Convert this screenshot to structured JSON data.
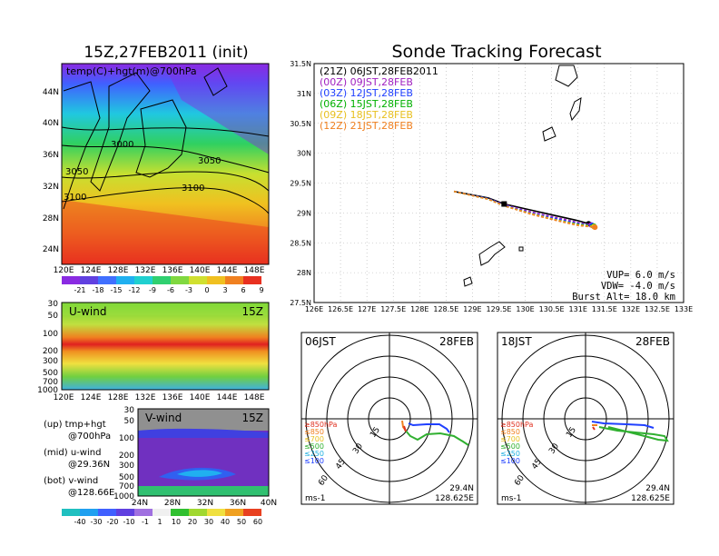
{
  "left": {
    "title": "15Z,27FEB2011 (init)",
    "map_label": "temp(C)+hgt(m)@700hPa",
    "map_xticks": [
      "120E",
      "124E",
      "128E",
      "132E",
      "136E",
      "140E",
      "144E",
      "148E"
    ],
    "map_yticks": [
      "44N",
      "40N",
      "36N",
      "32N",
      "28N",
      "24N"
    ],
    "contour_labels": [
      "3000",
      "3050",
      "3050",
      "3100",
      "3100"
    ],
    "temp_cbar": [
      "-21",
      "-18",
      "-15",
      "-12",
      "-9",
      "-6",
      "-3",
      "0",
      "3",
      "6",
      "9"
    ],
    "u_label": "U-wind",
    "u_time": "15Z",
    "p_ticks": [
      "30",
      "50",
      "100",
      "200",
      "300",
      "500",
      "700",
      "1000"
    ],
    "u_xticks": [
      "120E",
      "124E",
      "128E",
      "132E",
      "136E",
      "140E",
      "144E",
      "148E"
    ],
    "v_label": "V-wind",
    "v_time": "15Z",
    "v_xticks": [
      "24N",
      "28N",
      "32N",
      "36N",
      "40N"
    ],
    "legend": [
      "(up) tmp+hgt",
      "@700hPa",
      "(mid) u-wind",
      "@29.36N",
      "(bot) v-wind",
      "@128.66E"
    ],
    "wind_cbar": [
      "-40",
      "-30",
      "-20",
      "-10",
      "-1",
      "1",
      "10",
      "20",
      "30",
      "40",
      "50",
      "60"
    ]
  },
  "right": {
    "title": "Sonde Tracking Forecast",
    "legend": [
      {
        "text": "(21Z) 06JST,28FEB2011",
        "color": "#000000"
      },
      {
        "text": "(00Z) 09JST,28FEB",
        "color": "#a020c0"
      },
      {
        "text": "(03Z) 12JST,28FEB",
        "color": "#2040ff"
      },
      {
        "text": "(06Z) 15JST,28FEB",
        "color": "#00b000"
      },
      {
        "text": "(09Z) 18JST,28FEB",
        "color": "#e8c020"
      },
      {
        "text": "(12Z) 21JST,28FEB",
        "color": "#f08020"
      }
    ],
    "params": [
      "VUP= 6.0 m/s",
      "VDW= -4.0 m/s",
      "Burst Alt= 18.0 km"
    ],
    "hodo_left_time": "06JST",
    "hodo_left_date": "28FEB",
    "hodo_right_time": "18JST",
    "hodo_right_date": "28FEB",
    "hodo_rings": [
      "15",
      "30",
      "45",
      "60"
    ],
    "hodo_levels": [
      "≥850hPa",
      "≤850",
      "≤700",
      "≤500",
      "≤250",
      "≤100"
    ],
    "hodo_unit": "ms-1",
    "hodo_lat": "29.4N",
    "hodo_lon": "128.625E"
  },
  "chart_data": {
    "type": "line",
    "title": "Sonde Tracking Forecast",
    "xlabel": "",
    "ylabel": "",
    "xlim": [
      126,
      133
    ],
    "ylim": [
      27.5,
      31.5
    ],
    "x_ticks": [
      "126E",
      "126.5E",
      "127E",
      "127.5E",
      "128E",
      "128.5E",
      "129E",
      "129.5E",
      "130E",
      "130.5E",
      "131E",
      "131.5E",
      "132E",
      "132.5E",
      "133E"
    ],
    "y_ticks": [
      "27.5N",
      "28N",
      "28.5N",
      "29N",
      "29.5N",
      "30N",
      "30.5N",
      "31N",
      "31.5N"
    ],
    "grid": true,
    "series": [
      {
        "name": "(21Z) 06JST,28FEB2011",
        "color": "#000000",
        "x": [
          128.65,
          129.3,
          129.6,
          130.1,
          130.6,
          131.0,
          131.2
        ],
        "y": [
          29.36,
          29.25,
          29.15,
          29.05,
          28.95,
          28.87,
          28.82
        ]
      },
      {
        "name": "(00Z) 09JST,28FEB",
        "color": "#a020c0",
        "x": [
          128.65,
          129.3,
          129.6,
          130.1,
          130.6,
          131.0,
          131.25
        ],
        "y": [
          29.36,
          29.24,
          29.14,
          29.02,
          28.92,
          28.84,
          28.8
        ]
      },
      {
        "name": "(03Z) 12JST,28FEB",
        "color": "#2040ff",
        "x": [
          128.65,
          129.3,
          129.6,
          130.1,
          130.6,
          131.0,
          131.27
        ],
        "y": [
          29.36,
          29.24,
          29.13,
          29.0,
          28.9,
          28.82,
          28.79
        ]
      },
      {
        "name": "(06Z) 15JST,28FEB",
        "color": "#00b000",
        "x": [
          128.65,
          129.3,
          129.6,
          130.1,
          130.6,
          131.0,
          131.3
        ],
        "y": [
          29.36,
          29.23,
          29.12,
          28.99,
          28.88,
          28.81,
          28.78
        ]
      },
      {
        "name": "(09Z) 18JST,28FEB",
        "color": "#e8c020",
        "x": [
          128.65,
          129.3,
          129.6,
          130.1,
          130.6,
          131.0,
          131.3
        ],
        "y": [
          29.36,
          29.23,
          29.12,
          28.99,
          28.88,
          28.8,
          28.77
        ]
      },
      {
        "name": "(12Z) 21JST,28FEB",
        "color": "#f08020",
        "x": [
          128.65,
          129.3,
          129.6,
          130.1,
          130.6,
          131.0,
          131.32
        ],
        "y": [
          29.36,
          29.23,
          29.12,
          28.98,
          28.87,
          28.79,
          28.76
        ]
      }
    ]
  }
}
